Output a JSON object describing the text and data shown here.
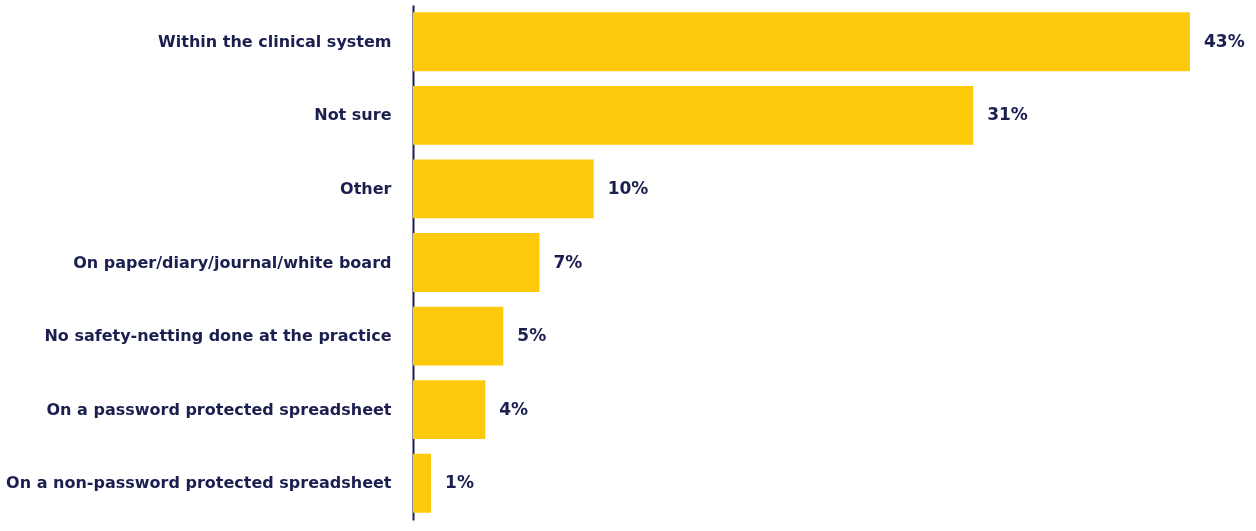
{
  "chart_data": {
    "type": "bar",
    "orientation": "horizontal",
    "categories": [
      "Within the clinical system",
      "Not sure",
      "Other",
      "On paper/diary/journal/white board",
      "No safety-netting done at the practice",
      "On a password protected spreadsheet",
      "On a non-password protected spreadsheet"
    ],
    "values": [
      43,
      31,
      10,
      7,
      5,
      4,
      1
    ],
    "value_labels": [
      "43%",
      "31%",
      "10%",
      "7%",
      "5%",
      "4%",
      "1%"
    ],
    "color": "#fdca0b",
    "grid": false
  }
}
